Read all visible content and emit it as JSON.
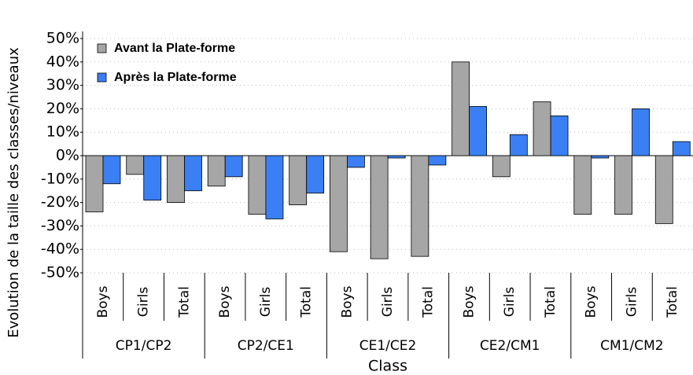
{
  "chart_data": {
    "type": "bar",
    "ylabel": "Evolution de la taille des classes/niveaux",
    "xlabel": "Class",
    "groups": [
      "CP1/CP2",
      "CP2/CE1",
      "CE1/CE2",
      "CE2/CM1",
      "CM1/CM2"
    ],
    "categories": [
      "Boys",
      "Girls",
      "Total",
      "Boys",
      "Girls",
      "Total",
      "Boys",
      "Girls",
      "Total",
      "Boys",
      "Girls",
      "Total",
      "Boys",
      "Girls",
      "Total"
    ],
    "series": [
      {
        "name": "Avant la Plate-forme",
        "color": "#a6a6a6",
        "values": [
          -24,
          -8,
          -20,
          -13,
          -25,
          -21,
          -41,
          -44,
          -43,
          40,
          -9,
          23,
          -25,
          -25,
          -29
        ]
      },
      {
        "name": "Après la Plate-forme",
        "color": "#3b7ff5",
        "values": [
          -12,
          -19,
          -15,
          -9,
          -27,
          -16,
          -5,
          -1,
          -4,
          21,
          9,
          17,
          -1,
          20,
          6
        ]
      }
    ],
    "ylim": [
      -50,
      50
    ],
    "yticks": [
      {
        "value": -50,
        "label": "-50%"
      },
      {
        "value": -40,
        "label": "-40%"
      },
      {
        "value": -30,
        "label": "-30%"
      },
      {
        "value": -20,
        "label": "-20%"
      },
      {
        "value": -10,
        "label": "-10%"
      },
      {
        "value": 0,
        "label": "0%"
      },
      {
        "value": 10,
        "label": "10%"
      },
      {
        "value": 20,
        "label": "20%"
      },
      {
        "value": 30,
        "label": "30%"
      },
      {
        "value": 40,
        "label": "40%"
      },
      {
        "value": 50,
        "label": "50%"
      }
    ],
    "grid": true,
    "legend": "top-left"
  }
}
